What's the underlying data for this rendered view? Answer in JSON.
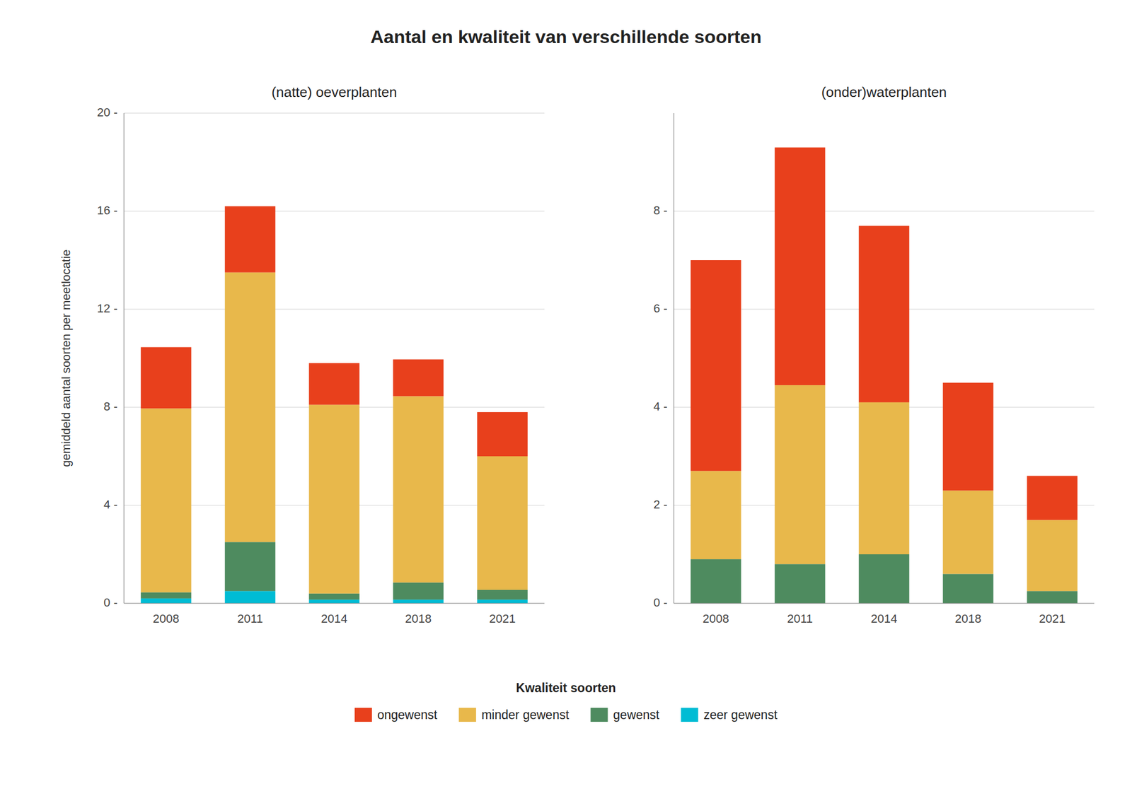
{
  "title": "Aantal en kwaliteit van verschillende soorten",
  "legend_title": "Kwaliteit soorten",
  "legend": "bottom",
  "chart_data": [
    {
      "type": "bar",
      "stacked": true,
      "grid": true,
      "title": "(natte) oeverplanten",
      "ylabel": "gemiddeld aantal soorten per meetlocatie",
      "categories": [
        "2008",
        "2011",
        "2014",
        "2018",
        "2021"
      ],
      "series": [
        {
          "name": "zeer gewenst",
          "color": "#00BCD4",
          "values": [
            0.2,
            0.5,
            0.15,
            0.15,
            0.15
          ]
        },
        {
          "name": "gewenst",
          "color": "#4E8B5F",
          "values": [
            0.25,
            2.0,
            0.25,
            0.7,
            0.4
          ]
        },
        {
          "name": "minder gewenst",
          "color": "#E8B84B",
          "values": [
            7.5,
            11.0,
            7.7,
            7.6,
            5.45
          ]
        },
        {
          "name": "ongewenst",
          "color": "#E8401C",
          "values": [
            2.5,
            2.7,
            1.7,
            1.5,
            1.8
          ]
        }
      ],
      "ylim": [
        0,
        20
      ],
      "yticks": [
        {
          "value": 0,
          "label": "0 -"
        },
        {
          "value": 4,
          "label": "4 -"
        },
        {
          "value": 8,
          "label": "8 -"
        },
        {
          "value": 12,
          "label": "12 -"
        },
        {
          "value": 16,
          "label": "16 -"
        },
        {
          "value": 20,
          "label": "20 -"
        }
      ]
    },
    {
      "type": "bar",
      "stacked": true,
      "grid": true,
      "title": "(onder)waterplanten",
      "categories": [
        "2008",
        "2011",
        "2014",
        "2018",
        "2021"
      ],
      "series": [
        {
          "name": "zeer gewenst",
          "color": "#00BCD4",
          "values": [
            0.0,
            0.0,
            0.0,
            0.0,
            0.0
          ]
        },
        {
          "name": "gewenst",
          "color": "#4E8B5F",
          "values": [
            0.9,
            0.8,
            1.0,
            0.6,
            0.25
          ]
        },
        {
          "name": "minder gewenst",
          "color": "#E8B84B",
          "values": [
            1.8,
            3.65,
            3.1,
            1.7,
            1.45
          ]
        },
        {
          "name": "ongewenst",
          "color": "#E8401C",
          "values": [
            4.3,
            4.85,
            3.6,
            2.2,
            0.9
          ]
        }
      ],
      "ylim": [
        0,
        10
      ],
      "yticks": [
        {
          "value": 0,
          "label": "0 -"
        },
        {
          "value": 2,
          "label": "2 -"
        },
        {
          "value": 4,
          "label": "4 -"
        },
        {
          "value": 6,
          "label": "6 -"
        },
        {
          "value": 8,
          "label": "8 -"
        }
      ]
    }
  ]
}
